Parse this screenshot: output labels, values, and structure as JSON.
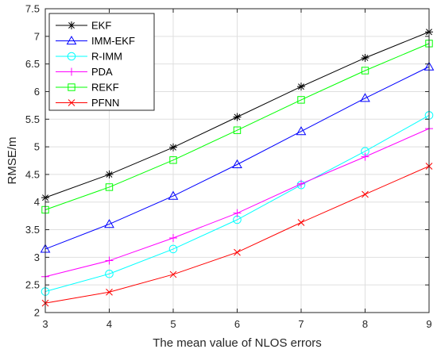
{
  "chart_data": {
    "type": "line",
    "title": "",
    "xlabel": "The mean value of NLOS errors",
    "ylabel": "RMSE/m",
    "xlim": [
      3,
      9
    ],
    "ylim": [
      2,
      7.5
    ],
    "xticks": [
      3,
      4,
      5,
      6,
      7,
      8,
      9
    ],
    "yticks": [
      2,
      2.5,
      3,
      3.5,
      4,
      4.5,
      5,
      5.5,
      6,
      6.5,
      7,
      7.5
    ],
    "grid": true,
    "legend_position": "top-left",
    "x": [
      3,
      4,
      5,
      6,
      7,
      8,
      9
    ],
    "series": [
      {
        "name": "EKF",
        "color": "#000000",
        "marker": "asterisk",
        "values": [
          4.08,
          4.5,
          4.99,
          5.54,
          6.09,
          6.61,
          7.08
        ]
      },
      {
        "name": "IMM-EKF",
        "color": "#0000ff",
        "marker": "triangle",
        "values": [
          3.15,
          3.6,
          4.11,
          4.68,
          5.28,
          5.88,
          6.45
        ]
      },
      {
        "name": "R-IMM",
        "color": "#00ffff",
        "marker": "circle",
        "values": [
          2.38,
          2.7,
          3.15,
          3.68,
          4.31,
          4.92,
          5.57
        ]
      },
      {
        "name": "PDA",
        "color": "#ff00ff",
        "marker": "plus",
        "values": [
          2.65,
          2.94,
          3.35,
          3.8,
          4.33,
          4.82,
          5.33
        ]
      },
      {
        "name": "REKF",
        "color": "#00ff00",
        "marker": "square",
        "values": [
          3.86,
          4.27,
          4.76,
          5.3,
          5.85,
          6.38,
          6.87
        ]
      },
      {
        "name": "PFNN",
        "color": "#ff0000",
        "marker": "x",
        "values": [
          2.17,
          2.37,
          2.69,
          3.09,
          3.63,
          4.14,
          4.65
        ]
      }
    ]
  }
}
